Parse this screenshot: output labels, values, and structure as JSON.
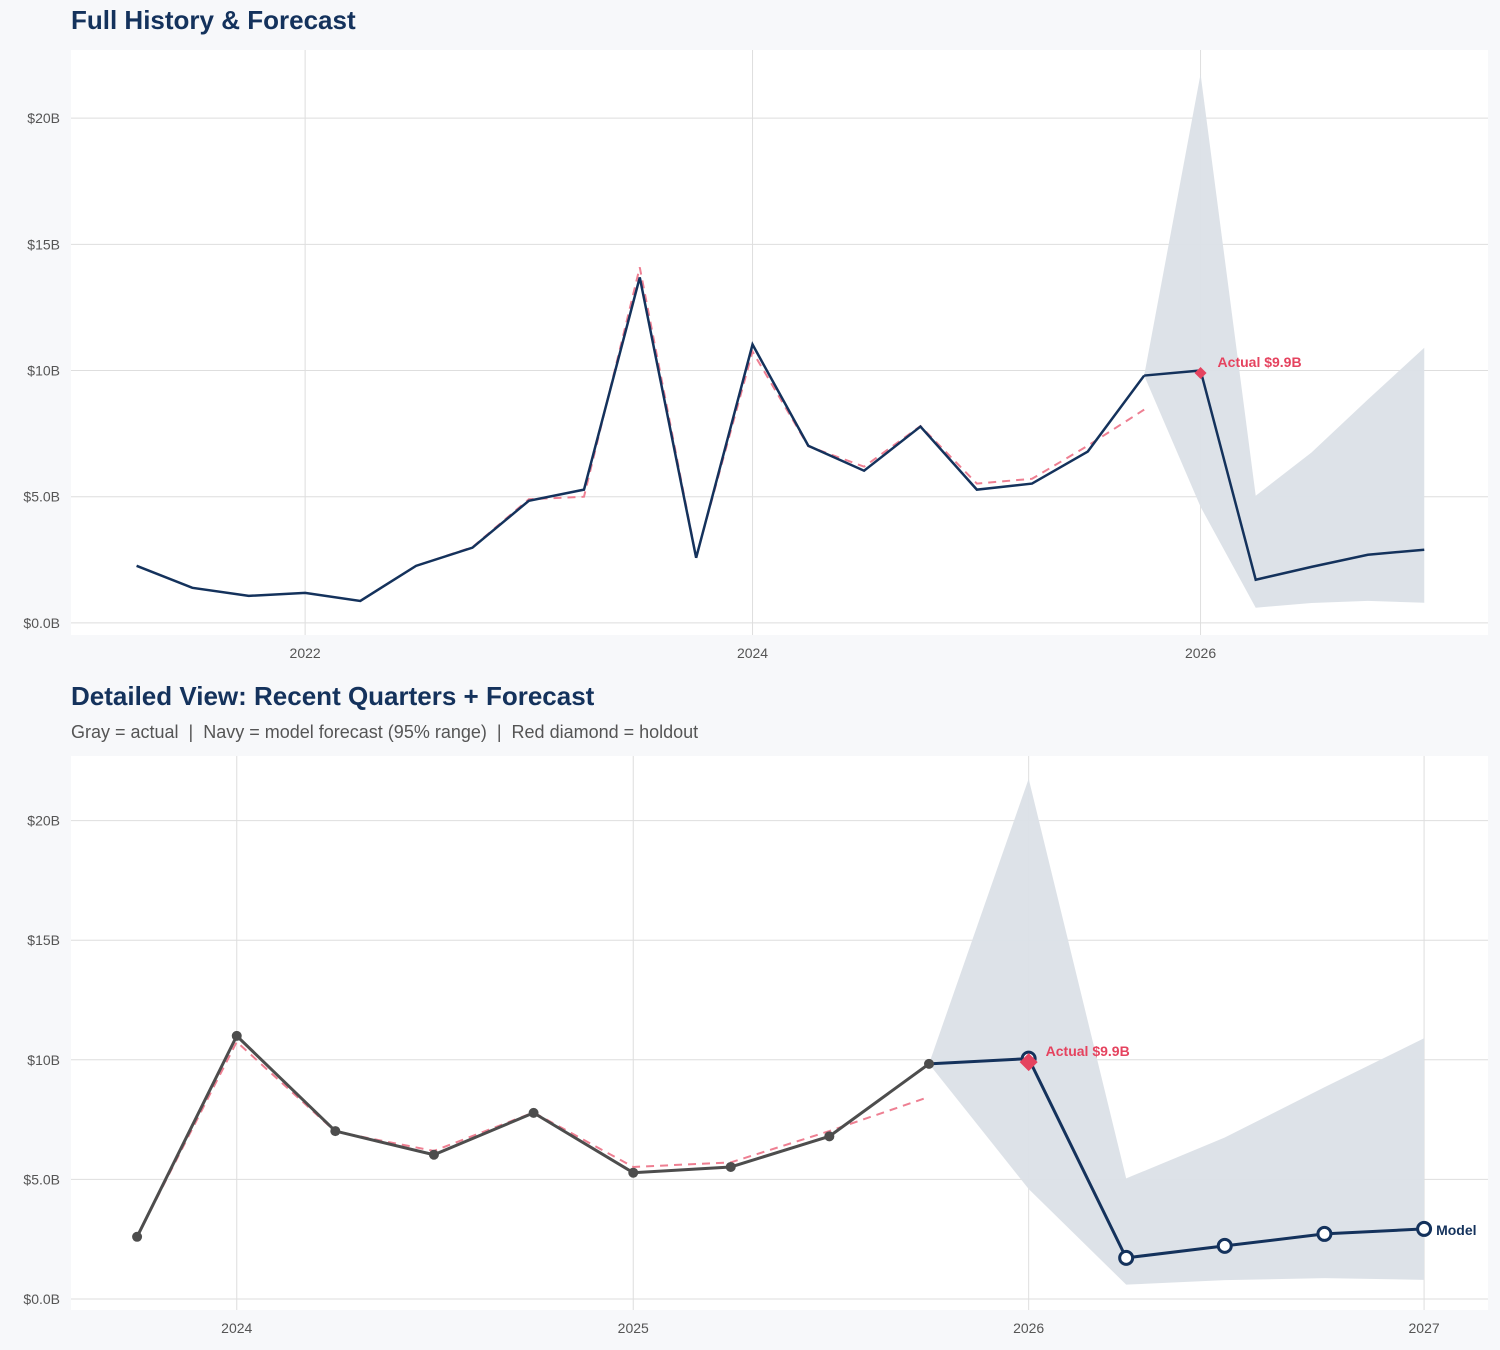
{
  "colors": {
    "navy": "#14325c",
    "gray": "#4d4d4d",
    "red": "#e5435f",
    "band": "#dbe0e7",
    "fitted": "#ee7f92"
  },
  "chart_data": [
    {
      "type": "line",
      "title": "Full History & Forecast",
      "subtitle": "",
      "xlim": [
        "2020-12-15",
        "2027-04-15"
      ],
      "ylim": [
        -0.48,
        22.7
      ],
      "x_ticks": [
        {
          "date": "2022-01-01",
          "label": "2022"
        },
        {
          "date": "2024-01-01",
          "label": "2024"
        },
        {
          "date": "2026-01-01",
          "label": "2026"
        }
      ],
      "y_ticks": [
        {
          "value": 0,
          "label": "$0.0B"
        },
        {
          "value": 5,
          "label": "$5.0B"
        },
        {
          "value": 10,
          "label": "$10B"
        },
        {
          "value": 15,
          "label": "$15B"
        },
        {
          "value": 20,
          "label": "$20B"
        }
      ],
      "grid": true,
      "actual": {
        "color": "navy",
        "markers": false,
        "x": [
          "2021-04-01",
          "2021-07-01",
          "2021-10-01",
          "2022-01-01",
          "2022-04-01",
          "2022-07-01",
          "2022-10-01",
          "2023-01-01",
          "2023-04-01",
          "2023-07-01",
          "2023-10-01",
          "2024-01-01",
          "2024-04-01",
          "2024-07-01",
          "2024-10-01",
          "2025-01-01",
          "2025-04-01",
          "2025-07-01",
          "2025-10-01"
        ],
        "y": [
          2.26,
          1.39,
          1.07,
          1.19,
          0.87,
          2.26,
          2.98,
          4.84,
          5.28,
          13.69,
          2.58,
          11.03,
          7.02,
          6.03,
          7.78,
          5.28,
          5.52,
          6.79,
          9.8
        ]
      },
      "fitted": {
        "x": [
          "2022-04-01",
          "2022-07-01",
          "2022-10-01",
          "2023-01-01",
          "2023-04-01",
          "2023-07-01",
          "2023-10-01",
          "2024-01-01",
          "2024-04-01",
          "2024-07-01",
          "2024-10-01",
          "2025-01-01",
          "2025-04-01",
          "2025-07-01",
          "2025-10-01"
        ],
        "y": [
          0.87,
          2.26,
          3.0,
          4.9,
          5.0,
          14.09,
          2.6,
          10.75,
          7.0,
          6.19,
          7.8,
          5.52,
          5.71,
          7.02,
          8.45
        ]
      },
      "forecast": {
        "markers": false,
        "x": [
          "2025-10-01",
          "2026-01-01",
          "2026-04-01",
          "2026-07-01",
          "2026-10-01",
          "2027-01-01"
        ],
        "y": [
          9.8,
          10.0,
          1.71,
          2.22,
          2.7,
          2.9
        ],
        "lower": [
          9.8,
          4.6,
          0.6,
          0.79,
          0.87,
          0.8
        ],
        "upper": [
          9.8,
          21.75,
          5.04,
          6.75,
          8.85,
          10.9
        ]
      },
      "holdout": {
        "date": "2026-01-01",
        "value": 9.9,
        "label": "Actual $9.9B"
      },
      "end_label": ""
    },
    {
      "type": "line",
      "title": "Detailed View: Recent Quarters + Forecast",
      "subtitle": "Gray = actual  |  Navy = model forecast (95% range)  |  Red diamond = holdout",
      "xlim": [
        "2023-08-01",
        "2027-03-01"
      ],
      "ylim": [
        -0.46,
        22.7
      ],
      "x_ticks": [
        {
          "date": "2024-01-01",
          "label": "2024"
        },
        {
          "date": "2025-01-01",
          "label": "2025"
        },
        {
          "date": "2026-01-01",
          "label": "2026"
        },
        {
          "date": "2027-01-01",
          "label": "2027"
        }
      ],
      "y_ticks": [
        {
          "value": 0,
          "label": "$0.0B"
        },
        {
          "value": 5,
          "label": "$5.0B"
        },
        {
          "value": 10,
          "label": "$10B"
        },
        {
          "value": 15,
          "label": "$15B"
        },
        {
          "value": 20,
          "label": "$20B"
        }
      ],
      "grid": true,
      "actual": {
        "color": "gray",
        "markers": true,
        "x": [
          "2023-10-01",
          "2024-01-01",
          "2024-04-01",
          "2024-07-01",
          "2024-10-01",
          "2025-01-01",
          "2025-04-01",
          "2025-07-01",
          "2025-10-01"
        ],
        "y": [
          2.6,
          11.0,
          7.02,
          6.03,
          7.78,
          5.28,
          5.52,
          6.8,
          9.83
        ]
      },
      "fitted": {
        "x": [
          "2023-10-01",
          "2024-01-01",
          "2024-04-01",
          "2024-07-01",
          "2024-10-01",
          "2025-01-01",
          "2025-04-01",
          "2025-07-01",
          "2025-10-01"
        ],
        "y": [
          2.6,
          10.75,
          7.0,
          6.19,
          7.8,
          5.52,
          5.71,
          7.02,
          8.45
        ]
      },
      "forecast": {
        "markers": true,
        "x": [
          "2025-10-01",
          "2026-01-01",
          "2026-04-01",
          "2026-07-01",
          "2026-10-01",
          "2027-01-01"
        ],
        "y": [
          9.83,
          10.05,
          1.72,
          2.22,
          2.72,
          2.93
        ],
        "lower": [
          9.83,
          4.6,
          0.6,
          0.79,
          0.87,
          0.8
        ],
        "upper": [
          9.83,
          21.75,
          5.04,
          6.75,
          8.85,
          10.9
        ]
      },
      "holdout": {
        "date": "2026-01-01",
        "value": 9.9,
        "label": "Actual $9.9B"
      },
      "end_label": "Model"
    }
  ]
}
